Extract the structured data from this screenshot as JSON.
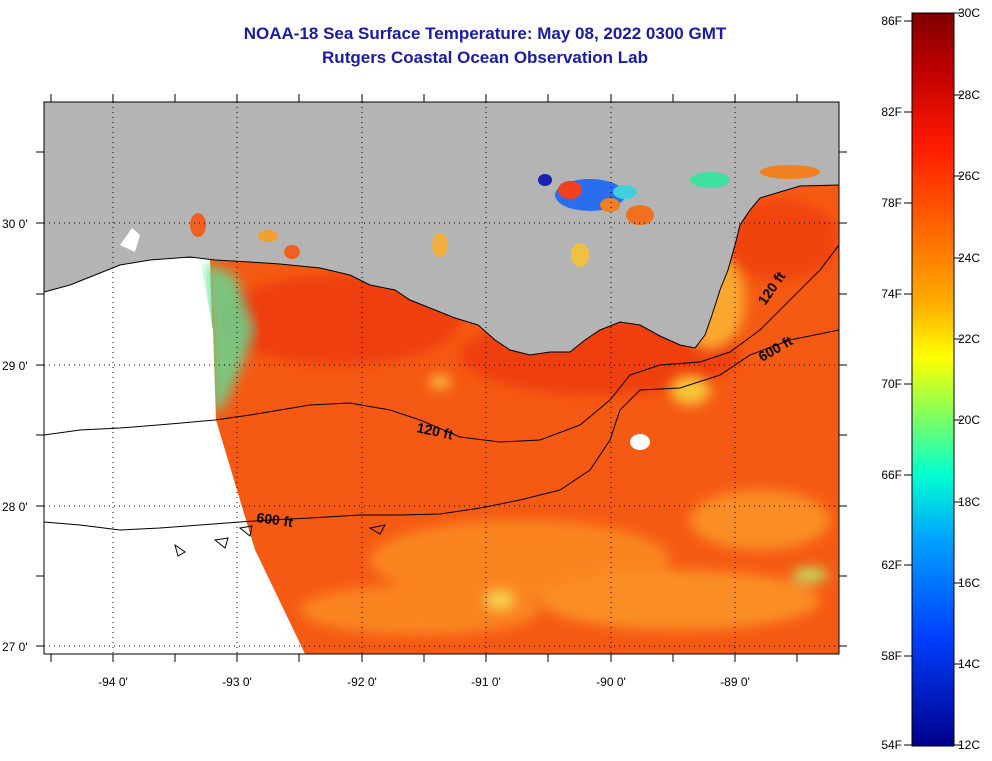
{
  "title": {
    "line1": "NOAA-18 Sea Surface Temperature:  May 08, 2022 0300 GMT",
    "line2": "Rutgers Coastal Ocean Observation Lab"
  },
  "map": {
    "lat_labels": [
      "30 0'",
      "29 0'",
      "28 0'",
      "27 0'"
    ],
    "lon_labels": [
      "-94 0'",
      "-93 0'",
      "-92 0'",
      "-91 0'",
      "-90 0'",
      "-89 0'"
    ],
    "contour_labels": {
      "c120_west": "120 ft",
      "c120_east": "120 ft",
      "c600_west": "600 ft",
      "c600_east": "600 ft"
    },
    "colors": {
      "land": "#b4b4b4",
      "water_base": "#f55a14",
      "nodata": "#ffffff"
    }
  },
  "colorbar": {
    "fahrenheit_labels": [
      "86F",
      "82F",
      "78F",
      "74F",
      "70F",
      "66F",
      "62F",
      "58F",
      "54F"
    ],
    "celsius_labels": [
      "30C",
      "28C",
      "26C",
      "24C",
      "22C",
      "20C",
      "18C",
      "16C",
      "14C",
      "12C"
    ],
    "colors": [
      "#7f0000",
      "#c00000",
      "#ff1a00",
      "#ff6a00",
      "#ffb000",
      "#ffff00",
      "#80ff60",
      "#00ffd0",
      "#00a0ff",
      "#0040ff",
      "#00008a"
    ]
  }
}
